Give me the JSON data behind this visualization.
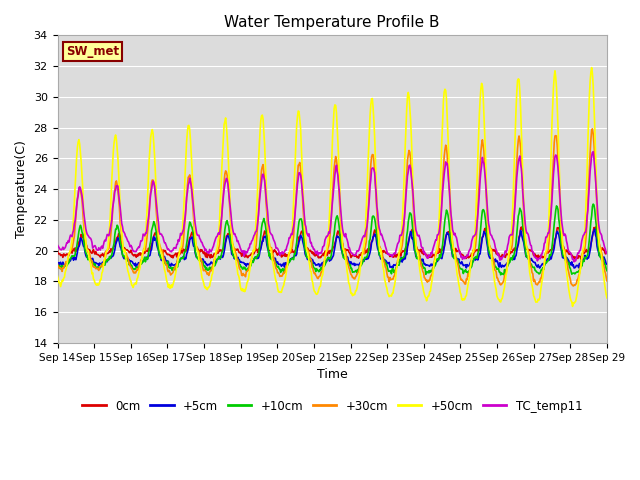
{
  "title": "Water Temperature Profile B",
  "xlabel": "Time",
  "ylabel": "Temperature(C)",
  "ylim": [
    14,
    34
  ],
  "ytick_vals": [
    14,
    16,
    18,
    20,
    22,
    24,
    26,
    28,
    30,
    32,
    34
  ],
  "bg_color": "#dcdcdc",
  "fig_color": "#ffffff",
  "grid_color": "#ffffff",
  "lines": [
    {
      "label": "0cm",
      "color": "#dd0000",
      "lw": 1.2
    },
    {
      "label": "+5cm",
      "color": "#0000dd",
      "lw": 1.2
    },
    {
      "label": "+10cm",
      "color": "#00cc00",
      "lw": 1.2
    },
    {
      "label": "+30cm",
      "color": "#ff8800",
      "lw": 1.2
    },
    {
      "label": "+50cm",
      "color": "#ffff00",
      "lw": 1.2
    },
    {
      "label": "TC_temp11",
      "color": "#cc00cc",
      "lw": 1.2
    }
  ],
  "sw_met_label": "SW_met",
  "sw_met_bg": "#ffff99",
  "sw_met_fg": "#880000",
  "xtick_labels": [
    "Sep 14",
    "Sep 15",
    "Sep 16",
    "Sep 17",
    "Sep 18",
    "Sep 19",
    "Sep 20",
    "Sep 21",
    "Sep 22",
    "Sep 23",
    "Sep 24",
    "Sep 25",
    "Sep 26",
    "Sep 27",
    "Sep 28",
    "Sep 29"
  ],
  "days": 15,
  "pts_per_day": 48,
  "base_0cm": 20.0,
  "base_5cm": 19.5,
  "base_10cm": 19.5,
  "base_30cm": 20.0,
  "base_50cm": 20.0,
  "base_tc": 21.0,
  "amp_0cm_s": 1.0,
  "amp_0cm_e": 1.5,
  "amp_5cm_s": 1.2,
  "amp_5cm_e": 1.8,
  "amp_10cm_s": 2.0,
  "amp_10cm_e": 3.5,
  "amp_30cm_s": 4.0,
  "amp_30cm_e": 8.0,
  "amp_50cm_s": 7.0,
  "amp_50cm_e": 12.0,
  "amp_tc_s": 3.0,
  "amp_tc_e": 5.5
}
